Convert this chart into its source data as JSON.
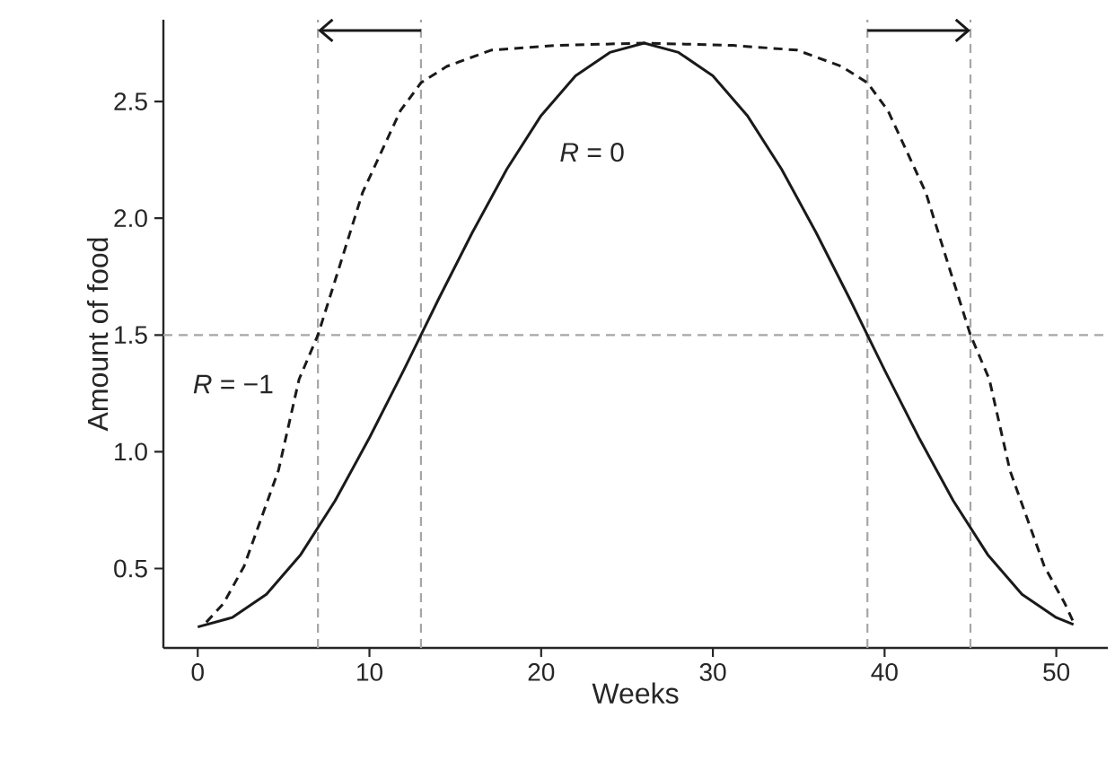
{
  "chart_data": {
    "type": "line",
    "xlabel": "Weeks",
    "ylabel": "Amount of food",
    "xlim": [
      -2,
      53
    ],
    "ylim": [
      0.16,
      2.85
    ],
    "xticks": [
      0,
      10,
      20,
      30,
      40,
      50
    ],
    "yticks": [
      0.5,
      {
        "value": 1.0,
        "label": "1.0"
      },
      1.5,
      {
        "value": 2.0,
        "label": "2.0"
      },
      2.5
    ],
    "grid": false,
    "marker": "none",
    "series": [
      {
        "color": "#1a1a1a",
        "line_style": "solid",
        "x": [
          0,
          2,
          4,
          6,
          8,
          10,
          12,
          13,
          14,
          16,
          18,
          20,
          22,
          24,
          26,
          28,
          30,
          32,
          34,
          36,
          38,
          39,
          40,
          42,
          44,
          46,
          48,
          50,
          51
        ],
        "values": [
          0.25,
          0.29,
          0.39,
          0.56,
          0.79,
          1.06,
          1.35,
          1.5,
          1.65,
          1.94,
          2.21,
          2.44,
          2.61,
          2.71,
          2.75,
          2.71,
          2.61,
          2.44,
          2.21,
          1.94,
          1.65,
          1.5,
          1.35,
          1.06,
          0.79,
          0.56,
          0.39,
          0.29,
          0.26
        ]
      },
      {
        "color": "#1a1a1a",
        "line_style": "dashed",
        "x": [
          0.5,
          1.5,
          2.7,
          4.7,
          5.9,
          7,
          8.2,
          9.6,
          11.8,
          13,
          14.5,
          17.1,
          20.8,
          26,
          31.2,
          34.9,
          37.5,
          39,
          40.2,
          42.4,
          43.8,
          45,
          46.1,
          47.3,
          49.3,
          50.5,
          51
        ],
        "values": [
          0.27,
          0.35,
          0.51,
          0.92,
          1.31,
          1.5,
          1.78,
          2.11,
          2.46,
          2.58,
          2.65,
          2.72,
          2.74,
          2.75,
          2.74,
          2.72,
          2.65,
          2.58,
          2.46,
          2.11,
          1.78,
          1.5,
          1.31,
          0.92,
          0.51,
          0.35,
          0.27
        ]
      }
    ],
    "ref_lines": [
      {
        "axis": "x",
        "value": 7,
        "color": "#a6a6a6",
        "line_style": "dashed"
      },
      {
        "axis": "x",
        "value": 13,
        "color": "#a6a6a6",
        "line_style": "dashed"
      },
      {
        "axis": "x",
        "value": 39,
        "color": "#a6a6a6",
        "line_style": "dashed"
      },
      {
        "axis": "x",
        "value": 45,
        "color": "#a6a6a6",
        "line_style": "dashed"
      },
      {
        "axis": "y",
        "value": 1.5,
        "color": "#a6a6a6",
        "line_style": "dashed"
      }
    ],
    "annotations": [
      "*R* = 0",
      "*R* = −1"
    ]
  }
}
